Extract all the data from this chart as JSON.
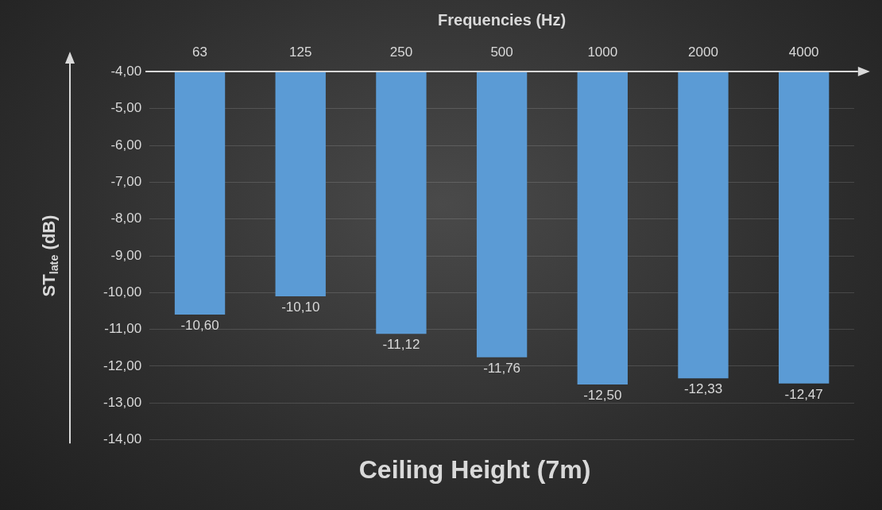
{
  "chart_data": {
    "type": "bar",
    "title": "Ceiling Height (7m)",
    "xlabel": "Frequencies (Hz)",
    "ylabel": "ST$_{late}$ (dB)",
    "categories": [
      "63",
      "125",
      "250",
      "500",
      "1000",
      "2000",
      "4000"
    ],
    "values": [
      -10.6,
      -10.1,
      -11.12,
      -11.76,
      -12.5,
      -12.33,
      -12.47
    ],
    "value_labels": [
      "-10,60",
      "-10,10",
      "-11,12",
      "-11,76",
      "-12,50",
      "-12,33",
      "-12,47"
    ],
    "color": "#5b9bd5",
    "ylim": [
      -14,
      -4
    ],
    "yticks": [
      {
        "value": -14,
        "label": "-14,00"
      },
      {
        "value": -13,
        "label": "-13,00"
      },
      {
        "value": -12,
        "label": "-12,00"
      },
      {
        "value": -11,
        "label": "-11,00"
      },
      {
        "value": -10,
        "label": "-10,00"
      },
      {
        "value": -9,
        "label": "-9,00"
      },
      {
        "value": -8,
        "label": "-8,00"
      },
      {
        "value": -7,
        "label": "-7,00"
      },
      {
        "value": -6,
        "label": "-6,00"
      },
      {
        "value": -5,
        "label": "-5,00"
      },
      {
        "value": -4,
        "label": "-4,00"
      }
    ],
    "grid": "y",
    "legend": false
  }
}
